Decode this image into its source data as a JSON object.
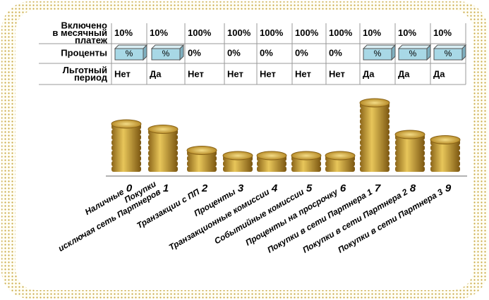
{
  "table": {
    "rows": [
      {
        "label": [
          "Включено",
          "в месячный",
          "платеж"
        ],
        "cells": [
          "10%",
          "10%",
          "100%",
          "100%",
          "100%",
          "100%",
          "100%",
          "10%",
          "10%",
          "10%"
        ]
      },
      {
        "label": [
          "Проценты"
        ],
        "cells": [
          "%",
          "%",
          "0%",
          "0%",
          "0%",
          "0%",
          "0%",
          "%",
          "%",
          "%"
        ]
      },
      {
        "label": [
          "Льготный",
          "период"
        ],
        "cells": [
          "Нет",
          "Да",
          "Нет",
          "Нет",
          "Нет",
          "Нет",
          "Нет",
          "Да",
          "Да",
          "Да"
        ]
      }
    ]
  },
  "columns": [
    {
      "number": "0",
      "label": [
        "Наличные"
      ],
      "coins": 9
    },
    {
      "number": "1",
      "label": [
        "Покупки",
        "исключая сеть Партнеров"
      ],
      "coins": 8
    },
    {
      "number": "2",
      "label": [
        "Транзакции с ПП"
      ],
      "coins": 4
    },
    {
      "number": "3",
      "label": [
        "Проценты"
      ],
      "coins": 3
    },
    {
      "number": "4",
      "label": [
        "Транзакционные комиссии"
      ],
      "coins": 3
    },
    {
      "number": "5",
      "label": [
        "Событийные комиссии"
      ],
      "coins": 3
    },
    {
      "number": "6",
      "label": [
        "Проценты на просрочку"
      ],
      "coins": 3
    },
    {
      "number": "7",
      "label": [
        "Покупки в сети Партнера 1"
      ],
      "coins": 13
    },
    {
      "number": "8",
      "label": [
        "Покупки в сети Партнера 2"
      ],
      "coins": 7
    },
    {
      "number": "9",
      "label": [
        "Покупки в сети Партнера 3"
      ],
      "coins": 6
    }
  ]
}
